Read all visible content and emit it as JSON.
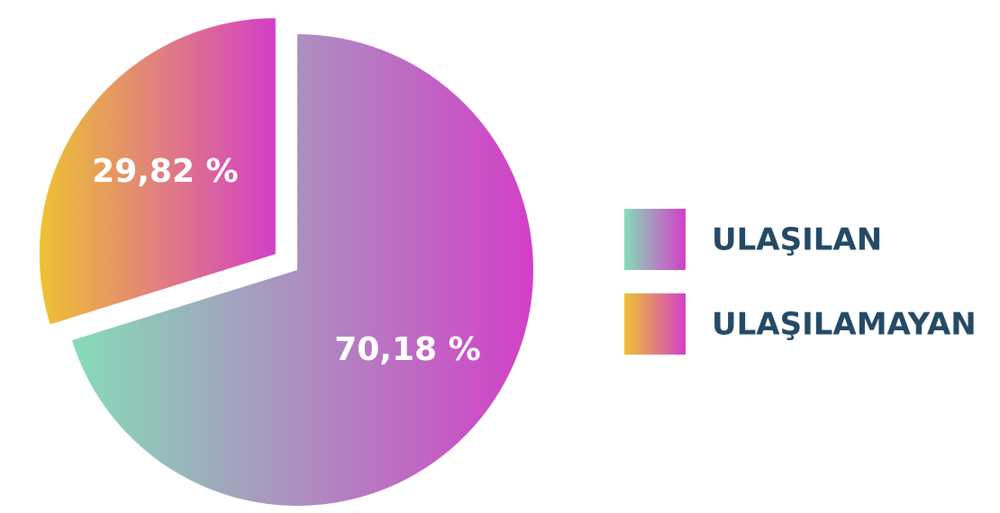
{
  "chart_data": {
    "type": "pie",
    "categories": [
      "ULAŞILAN",
      "ULAŞILAMAYAN"
    ],
    "values": [
      70.18,
      29.82
    ],
    "value_labels": [
      "70,18 %",
      "29,82 %"
    ],
    "colors": [
      [
        "#86dcb8",
        "#d33fc8"
      ],
      [
        "#eec232",
        "#d33fc8"
      ]
    ],
    "exploded": [
      false,
      true
    ]
  }
}
